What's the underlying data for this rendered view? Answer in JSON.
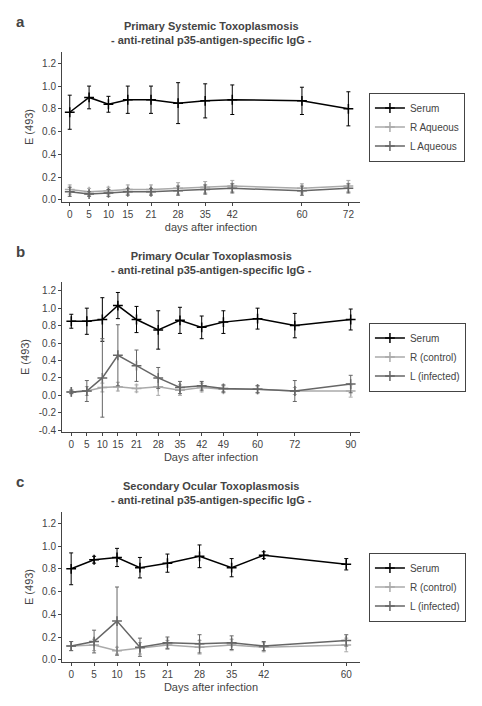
{
  "chart_data": [
    {
      "type": "line",
      "title": "Primary Systemic Toxoplasmosis",
      "subtitle": "- anti-retinal p35-antigen-specific IgG -",
      "x_label": "days after infection",
      "y_label": "E (493)",
      "annotations": [
        "a"
      ],
      "x": [
        0,
        5,
        10,
        15,
        21,
        28,
        35,
        42,
        60,
        72
      ],
      "xlim": [
        -2,
        75
      ],
      "xticks": [
        0,
        5,
        10,
        15,
        21,
        28,
        35,
        42,
        60,
        72
      ],
      "ylim": [
        -0.02,
        1.3
      ],
      "yticks": [
        {
          "value": 0,
          "label": "0.0"
        },
        0.2,
        0.4,
        0.6,
        0.8,
        {
          "value": 1.0,
          "label": "1.0"
        },
        1.2
      ],
      "marker": "plus",
      "grid": false,
      "legend": "right",
      "series": [
        {
          "name": "Serum",
          "color": "#000000",
          "values": [
            0.77,
            0.9,
            0.84,
            0.88,
            0.88,
            0.85,
            0.87,
            0.88,
            0.87,
            0.8
          ],
          "errors": [
            0.15,
            0.1,
            0.07,
            0.12,
            0.12,
            0.18,
            0.15,
            0.13,
            0.12,
            0.15
          ]
        },
        {
          "name": "R Aqueous",
          "color": "#aaaaaa",
          "values": [
            0.09,
            0.07,
            0.08,
            0.09,
            0.09,
            0.1,
            0.11,
            0.12,
            0.1,
            0.12
          ],
          "errors": [
            0.04,
            0.03,
            0.03,
            0.04,
            0.04,
            0.05,
            0.05,
            0.05,
            0.04,
            0.05
          ]
        },
        {
          "name": "L Aqueous",
          "color": "#666666",
          "values": [
            0.07,
            0.05,
            0.06,
            0.07,
            0.07,
            0.08,
            0.09,
            0.1,
            0.08,
            0.1
          ],
          "errors": [
            0.04,
            0.02,
            0.03,
            0.03,
            0.03,
            0.04,
            0.04,
            0.04,
            0.04,
            0.04
          ]
        }
      ]
    },
    {
      "type": "line",
      "title": "Primary Ocular Toxoplasmosis",
      "subtitle": "- anti-retinal p35-antigen-specific IgG -",
      "x_label": "Days after infection",
      "y_label": "E (493)",
      "annotations": [
        "b"
      ],
      "x": [
        0,
        5,
        10,
        15,
        21,
        28,
        35,
        42,
        49,
        60,
        72,
        90
      ],
      "xlim": [
        -3,
        93
      ],
      "xticks": [
        0,
        5,
        10,
        15,
        21,
        28,
        35,
        42,
        49,
        60,
        72,
        90
      ],
      "ylim": [
        -0.42,
        1.3
      ],
      "yticks": [
        -0.4,
        -0.2,
        {
          "value": 0,
          "label": "0.0"
        },
        0.2,
        0.4,
        0.6,
        0.8,
        {
          "value": 1.0,
          "label": "1.0"
        },
        1.2
      ],
      "marker": "plus",
      "grid": false,
      "legend": "right",
      "series": [
        {
          "name": "Serum",
          "color": "#000000",
          "values": [
            0.85,
            0.85,
            0.87,
            1.03,
            0.87,
            0.75,
            0.86,
            0.78,
            0.84,
            0.88,
            0.8,
            0.87
          ],
          "errors": [
            0.08,
            0.15,
            0.25,
            0.15,
            0.15,
            0.22,
            0.15,
            0.13,
            0.13,
            0.12,
            0.14,
            0.12
          ]
        },
        {
          "name": "R (control)",
          "color": "#aaaaaa",
          "values": [
            0.04,
            0.05,
            0.09,
            0.1,
            0.08,
            0.1,
            0.06,
            0.09,
            0.07,
            0.07,
            0.05,
            0.05
          ],
          "errors": [
            0.02,
            0.05,
            0.05,
            0.05,
            0.04,
            0.1,
            0.06,
            0.05,
            0.04,
            0.04,
            0.04,
            0.07
          ]
        },
        {
          "name": "L (infected)",
          "color": "#666666",
          "values": [
            0.04,
            0.05,
            0.2,
            0.46,
            0.34,
            0.2,
            0.09,
            0.11,
            0.08,
            0.07,
            0.05,
            0.13
          ],
          "errors": [
            0.02,
            0.12,
            0.45,
            0.35,
            0.18,
            0.12,
            0.07,
            0.05,
            0.04,
            0.04,
            0.12,
            0.1
          ]
        }
      ]
    },
    {
      "type": "line",
      "title": "Secondary Ocular Toxoplasmosis",
      "subtitle": "- anti-retinal p35-antigen-specific IgG -",
      "x_label": "Days after infection",
      "y_label": "E (493)",
      "annotations": [
        "c"
      ],
      "x": [
        0,
        5,
        10,
        15,
        21,
        28,
        35,
        42,
        60
      ],
      "xlim": [
        -2,
        63
      ],
      "xticks": [
        0,
        5,
        10,
        15,
        21,
        28,
        35,
        42,
        60
      ],
      "ylim": [
        -0.02,
        1.3
      ],
      "yticks": [
        {
          "value": 0,
          "label": "0.0"
        },
        0.2,
        0.4,
        0.6,
        0.8,
        {
          "value": 1.0,
          "label": "1.0"
        },
        1.2
      ],
      "marker": "plus",
      "grid": false,
      "legend": "right",
      "series": [
        {
          "name": "Serum",
          "color": "#000000",
          "values": [
            0.8,
            0.88,
            0.9,
            0.81,
            0.85,
            0.91,
            0.81,
            0.92,
            0.84
          ],
          "errors": [
            0.14,
            0.03,
            0.08,
            0.09,
            0.08,
            0.1,
            0.08,
            0.03,
            0.05
          ]
        },
        {
          "name": "R (control)",
          "color": "#aaaaaa",
          "values": [
            0.12,
            0.13,
            0.08,
            0.1,
            0.13,
            0.11,
            0.13,
            0.11,
            0.13
          ],
          "errors": [
            0.04,
            0.05,
            0.03,
            0.05,
            0.04,
            0.06,
            0.05,
            0.04,
            0.06
          ]
        },
        {
          "name": "L (infected)",
          "color": "#666666",
          "values": [
            0.12,
            0.16,
            0.34,
            0.11,
            0.15,
            0.14,
            0.15,
            0.12,
            0.17
          ],
          "errors": [
            0.04,
            0.1,
            0.3,
            0.08,
            0.05,
            0.08,
            0.06,
            0.04,
            0.05
          ]
        }
      ]
    }
  ]
}
